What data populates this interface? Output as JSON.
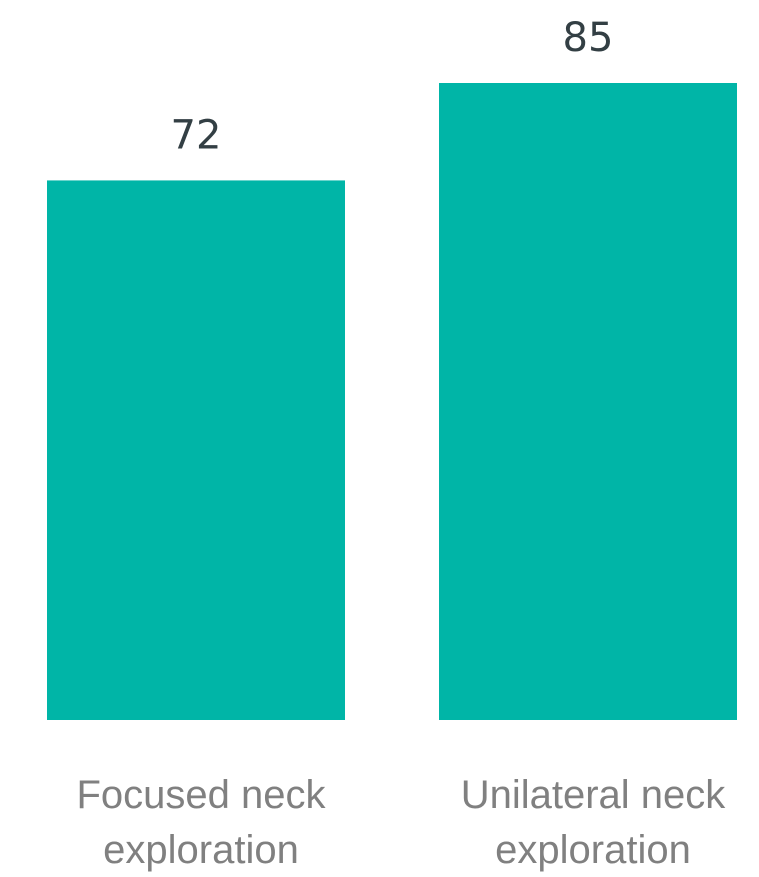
{
  "chart_data": {
    "type": "bar",
    "categories": [
      [
        "Focused neck",
        "exploration"
      ],
      [
        "Unilateral neck",
        "exploration"
      ]
    ],
    "values": [
      72,
      85
    ],
    "value_labels": [
      "72",
      "85"
    ],
    "title": "",
    "xlabel": "",
    "ylabel": "",
    "ylim": [
      0,
      85
    ],
    "grid": false,
    "legend": "none",
    "bar_color": "#00b5a7"
  }
}
